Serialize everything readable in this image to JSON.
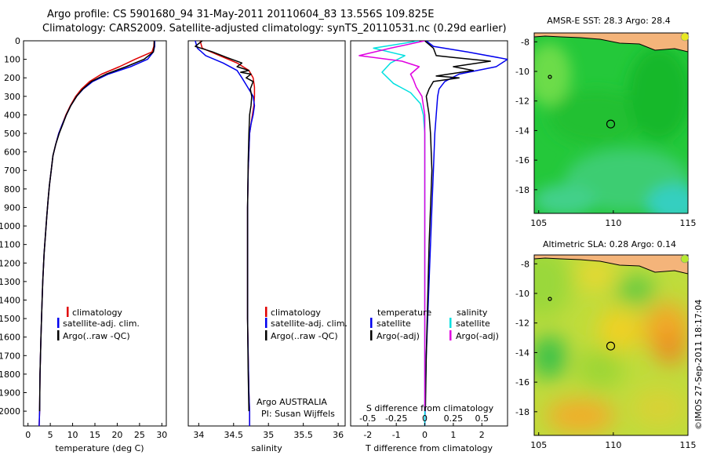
{
  "title": {
    "line1": "Argo profile: CS 5901680_94 31-May-2011 20110604_83 13.556S 109.825E",
    "line2": "Climatology: CARS2009. Satellite-adjusted climatology: synTS_20110531.nc (0.29d earlier)"
  },
  "footer": "©IMOS 27-Sep-2011 18:17:04",
  "colors": {
    "climatology": "#e00000",
    "satellite": "#0000ee",
    "argo": "#000000",
    "cyan": "#00e0e0",
    "magenta": "#e000e0"
  },
  "depth_ticks": [
    0,
    100,
    200,
    300,
    400,
    500,
    600,
    700,
    800,
    900,
    1000,
    1100,
    1200,
    1300,
    1400,
    1500,
    1600,
    1700,
    1800,
    1900,
    2000
  ],
  "chart_data": [
    {
      "type": "line",
      "id": "temperature",
      "xlabel": "temperature (deg C)",
      "ylim": [
        0,
        2080
      ],
      "xlim": [
        -1,
        31
      ],
      "xticks": [
        0,
        5,
        10,
        15,
        20,
        25,
        30
      ],
      "legend": [
        "climatology",
        "satellite-adj. clim.",
        "Argo(..raw -QC)"
      ],
      "series": [
        {
          "name": "climatology",
          "color": "#e00000",
          "x": [
            28.3,
            28.2,
            27.8,
            24.0,
            20.5,
            16.5,
            13.8,
            12.0,
            10.7,
            9.5,
            8.5,
            7.7,
            6.9,
            6.2,
            5.6,
            5.2,
            4.8,
            4.5,
            4.2,
            3.9,
            3.6,
            3.3,
            3.1,
            2.9,
            2.7,
            2.6,
            2.5
          ],
          "y": [
            0,
            30,
            60,
            100,
            140,
            180,
            220,
            260,
            300,
            350,
            400,
            450,
            500,
            560,
            620,
            700,
            780,
            860,
            950,
            1050,
            1150,
            1300,
            1450,
            1600,
            1800,
            2000,
            2080
          ]
        },
        {
          "name": "satellite-adj. clim.",
          "color": "#0000ee",
          "x": [
            28.4,
            28.4,
            28.1,
            26.8,
            23.0,
            18.0,
            14.5,
            12.4,
            10.9,
            9.6,
            8.6,
            7.7,
            6.9,
            6.2,
            5.6,
            5.2,
            4.8,
            4.5,
            4.2,
            3.9,
            3.6,
            3.3,
            3.1,
            2.9,
            2.7,
            2.6,
            2.5
          ],
          "y": [
            0,
            30,
            60,
            100,
            140,
            180,
            220,
            260,
            300,
            350,
            400,
            450,
            500,
            560,
            620,
            700,
            780,
            860,
            950,
            1050,
            1150,
            1300,
            1450,
            1600,
            1800,
            2000,
            2080
          ]
        },
        {
          "name": "Argo(..raw -QC)",
          "color": "#000000",
          "x": [
            28.3,
            28.3,
            28.1,
            26.0,
            22.0,
            17.5,
            14.2,
            12.3,
            10.9,
            9.6,
            8.6,
            7.8,
            7.0,
            6.2,
            5.6,
            5.2,
            4.8,
            4.5,
            4.2,
            3.9,
            3.6,
            3.3,
            3.1,
            2.9,
            2.7,
            2.6
          ],
          "y": [
            0,
            30,
            60,
            100,
            140,
            180,
            220,
            260,
            300,
            350,
            400,
            450,
            500,
            560,
            620,
            700,
            780,
            860,
            950,
            1050,
            1150,
            1300,
            1450,
            1600,
            1800,
            2000
          ]
        }
      ]
    },
    {
      "type": "line",
      "id": "salinity",
      "xlabel": "salinity",
      "ylim": [
        0,
        2080
      ],
      "xlim": [
        33.85,
        36.1
      ],
      "xticks": [
        34,
        34.5,
        35,
        35.5,
        36
      ],
      "legend": [
        "climatology",
        "satellite-adj. clim.",
        "Argo(..raw -QC)"
      ],
      "annotation": [
        "Argo AUSTRALIA",
        "PI: Susan Wijffels"
      ],
      "series": [
        {
          "name": "climatology",
          "color": "#e00000",
          "x": [
            34.02,
            34.05,
            34.3,
            34.55,
            34.72,
            34.78,
            34.8,
            34.8,
            34.79,
            34.77,
            34.75,
            34.73,
            34.72,
            34.71,
            34.7,
            34.7,
            34.7,
            34.7,
            34.71,
            34.72,
            34.73,
            34.73
          ],
          "y": [
            0,
            40,
            80,
            120,
            160,
            200,
            250,
            300,
            350,
            400,
            450,
            500,
            600,
            700,
            900,
            1100,
            1300,
            1500,
            1700,
            1900,
            2000,
            2080
          ]
        },
        {
          "name": "satellite-adj. clim.",
          "color": "#0000ee",
          "x": [
            33.95,
            33.98,
            34.1,
            34.35,
            34.55,
            34.62,
            34.7,
            34.78,
            34.8,
            34.78,
            34.75,
            34.73,
            34.72,
            34.71,
            34.7,
            34.7,
            34.7,
            34.7,
            34.71,
            34.72,
            34.73,
            34.73
          ],
          "y": [
            0,
            40,
            80,
            120,
            160,
            200,
            250,
            300,
            350,
            400,
            450,
            500,
            600,
            700,
            900,
            1100,
            1300,
            1500,
            1700,
            1900,
            2000,
            2080
          ]
        },
        {
          "name": "Argo(..raw -QC)",
          "color": "#000000",
          "x": [
            34.05,
            33.95,
            34.2,
            34.4,
            34.62,
            34.55,
            34.72,
            34.6,
            34.75,
            34.68,
            34.78,
            34.74,
            34.76,
            34.75,
            34.73,
            34.72,
            34.71,
            34.7,
            34.7,
            34.7,
            34.71,
            34.72
          ],
          "y": [
            0,
            30,
            60,
            90,
            120,
            140,
            160,
            170,
            180,
            200,
            220,
            260,
            300,
            350,
            400,
            500,
            650,
            900,
            1200,
            1500,
            1800,
            2000
          ]
        }
      ]
    },
    {
      "type": "line",
      "id": "difference",
      "xlabel": "T difference from climatology",
      "xlabel_top": "S difference from climatology",
      "ylim": [
        0,
        2080
      ],
      "xlim": [
        -2.6,
        2.9
      ],
      "xticks": [
        -2,
        -1,
        0,
        1,
        2
      ],
      "xticks_s": [
        "-0.5",
        "-0.25",
        "0",
        "0.25",
        "0.5"
      ],
      "legend_left": [
        "temperature",
        "satellite",
        "Argo(-adj)"
      ],
      "legend_right": [
        "salinity",
        "satellite",
        "Argo(-adj)"
      ],
      "series": [
        {
          "name": "T satellite",
          "color": "#0000ee",
          "x": [
            0.05,
            0.3,
            1.5,
            2.9,
            2.5,
            1.2,
            0.7,
            0.5,
            0.45,
            0.4,
            0.35,
            0.3,
            0.25,
            0.2,
            0.15,
            0.1,
            0.05,
            0.02,
            0.0
          ],
          "y": [
            0,
            30,
            60,
            100,
            140,
            180,
            220,
            260,
            300,
            400,
            500,
            700,
            900,
            1100,
            1300,
            1500,
            1700,
            1900,
            2080
          ]
        },
        {
          "name": "T Argo(-adj)",
          "color": "#000000",
          "x": [
            0.0,
            0.3,
            0.4,
            1.0,
            2.3,
            1.0,
            1.7,
            0.4,
            1.2,
            0.3,
            0.15,
            0.05,
            0.15,
            0.2,
            0.25,
            0.2,
            0.15,
            0.1,
            0.05,
            0.02
          ],
          "y": [
            0,
            40,
            80,
            90,
            110,
            140,
            160,
            190,
            200,
            220,
            260,
            300,
            400,
            500,
            700,
            900,
            1100,
            1400,
            1700,
            2000
          ]
        },
        {
          "name": "S satellite",
          "color": "#00e0e0",
          "x": [
            -0.2,
            -1.8,
            -0.7,
            -1.2,
            -1.5,
            -1.1,
            -0.5,
            -0.15,
            -0.05,
            0.0,
            0.0,
            0.0,
            0.0,
            0.0,
            0.0,
            0.0
          ],
          "y": [
            0,
            40,
            80,
            120,
            170,
            230,
            280,
            340,
            400,
            500,
            700,
            900,
            1200,
            1500,
            1800,
            2080
          ]
        },
        {
          "name": "S Argo(-adj)",
          "color": "#e000e0",
          "x": [
            0.0,
            -1.2,
            -2.3,
            -0.8,
            -0.2,
            -0.5,
            -0.4,
            -0.3,
            -0.1,
            0.0,
            0.0,
            0.0,
            0.0,
            0.0,
            0.0
          ],
          "y": [
            0,
            40,
            80,
            110,
            140,
            180,
            210,
            250,
            300,
            400,
            600,
            900,
            1300,
            1700,
            2000
          ]
        }
      ]
    },
    {
      "type": "heatmap",
      "id": "sst-map",
      "title": "AMSR-E SST: 28.3 Argo: 28.4",
      "xlim": [
        104.7,
        115
      ],
      "ylim": [
        -19.6,
        -7.4
      ],
      "xticks": [
        105,
        110,
        115
      ],
      "yticks": [
        -8,
        -10,
        -12,
        -14,
        -16,
        -18
      ],
      "float_position": {
        "lon": 109.825,
        "lat": -13.556
      }
    },
    {
      "type": "heatmap",
      "id": "sla-map",
      "title": "Altimetric SLA: 0.28 Argo: 0.14",
      "xlim": [
        104.7,
        115
      ],
      "ylim": [
        -19.6,
        -7.4
      ],
      "xticks": [
        105,
        110,
        115
      ],
      "yticks": [
        -8,
        -10,
        -12,
        -14,
        -16,
        -18
      ],
      "float_position": {
        "lon": 109.825,
        "lat": -13.556
      }
    }
  ]
}
